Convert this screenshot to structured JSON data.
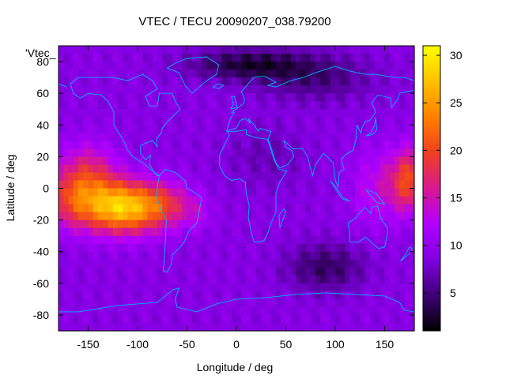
{
  "chart_data": {
    "type": "heatmap",
    "title": "VTEC / TECU 20090207_038.79200",
    "xlabel": "Longitude / deg",
    "ylabel": "Latitude / deg",
    "legend_label": "'Vtec_",
    "xlim": [
      -180,
      180
    ],
    "ylim": [
      -90,
      90
    ],
    "xticks": [
      "-150",
      "-100",
      "-50",
      "0",
      "50",
      "100",
      "150"
    ],
    "yticks": [
      "80",
      "60",
      "40",
      "20",
      "0",
      "-20",
      "-40",
      "-60",
      "-80"
    ],
    "colorbar": {
      "range": [
        1,
        31
      ],
      "ticks": [
        "5",
        "10",
        "15",
        "20",
        "25",
        "30"
      ],
      "palette": [
        "#000000",
        "#400078",
        "#8000e0",
        "#b000ff",
        "#d81890",
        "#f04020",
        "#ff8000",
        "#ffc000",
        "#ffff00"
      ]
    },
    "grid": false,
    "colormap": "black-purple-red-yellow",
    "value_sources": [
      {
        "lon": -115,
        "lat": -12,
        "value": 19,
        "spread_lon": 42,
        "spread_lat": 16
      },
      {
        "lon": -150,
        "lat": 8,
        "value": 8,
        "spread_lon": 30,
        "spread_lat": 20
      },
      {
        "lon": -170,
        "lat": -8,
        "value": 6,
        "spread_lon": 25,
        "spread_lat": 18
      },
      {
        "lon": -70,
        "lat": -10,
        "value": 5,
        "spread_lon": 25,
        "spread_lat": 14
      },
      {
        "lon": -40,
        "lat": -15,
        "value": 3,
        "spread_lon": 15,
        "spread_lat": 12
      },
      {
        "lon": 175,
        "lat": 5,
        "value": 11,
        "spread_lon": 20,
        "spread_lat": 20
      },
      {
        "lon": 140,
        "lat": 0,
        "value": 4,
        "spread_lon": 25,
        "spread_lat": 25
      },
      {
        "lon": 10,
        "lat": 78,
        "value": -6,
        "spread_lon": 60,
        "spread_lat": 10
      },
      {
        "lon": 80,
        "lat": 70,
        "value": -4,
        "spread_lon": 60,
        "spread_lat": 15
      },
      {
        "lon": 90,
        "lat": -50,
        "value": -5,
        "spread_lon": 40,
        "spread_lat": 15
      },
      {
        "lon": 30,
        "lat": 20,
        "value": -2,
        "spread_lon": 40,
        "spread_lat": 20
      }
    ],
    "background_value": 9
  }
}
